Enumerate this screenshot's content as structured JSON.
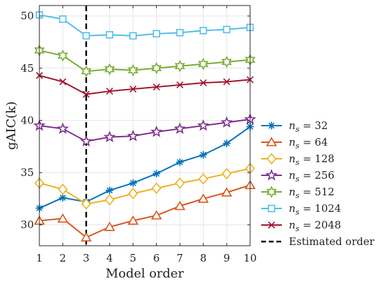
{
  "chart_data": {
    "type": "line",
    "title": "",
    "xlabel": "Model order",
    "ylabel": "gAIC(k)",
    "x": [
      1,
      2,
      3,
      4,
      5,
      6,
      7,
      8,
      9,
      10
    ],
    "xlim": [
      1,
      10
    ],
    "ylim": [
      28,
      51
    ],
    "xticks": [
      1,
      2,
      3,
      4,
      5,
      6,
      7,
      8,
      9,
      10
    ],
    "yticks": [
      30,
      35,
      40,
      45,
      50
    ],
    "grid": true,
    "legend_position": "right",
    "series": [
      {
        "name": "n_s = 32",
        "ns": "32",
        "color": "#0072BD",
        "marker": "asterisk",
        "values": [
          31.6,
          32.6,
          32.2,
          33.3,
          34.0,
          34.9,
          36.0,
          36.7,
          37.8,
          39.4
        ]
      },
      {
        "name": "n_s = 64",
        "ns": "64",
        "color": "#D95319",
        "marker": "triangle",
        "values": [
          30.4,
          30.6,
          28.8,
          29.8,
          30.4,
          30.9,
          31.8,
          32.5,
          33.1,
          33.8
        ]
      },
      {
        "name": "n_s = 128",
        "ns": "128",
        "color": "#EDB120",
        "marker": "diamond",
        "values": [
          34.0,
          33.4,
          32.0,
          32.4,
          33.0,
          33.5,
          34.0,
          34.4,
          34.9,
          35.4
        ]
      },
      {
        "name": "n_s = 256",
        "ns": "256",
        "color": "#7E2F8E",
        "marker": "star",
        "values": [
          39.5,
          39.2,
          38.0,
          38.4,
          38.5,
          38.9,
          39.2,
          39.5,
          39.8,
          40.1
        ]
      },
      {
        "name": "n_s = 512",
        "ns": "512",
        "color": "#77AC30",
        "marker": "hexagram",
        "values": [
          46.7,
          46.2,
          44.7,
          44.9,
          44.8,
          45.0,
          45.2,
          45.4,
          45.6,
          45.8
        ]
      },
      {
        "name": "n_s = 1024",
        "ns": "1024",
        "color": "#4DBEEE",
        "marker": "square",
        "values": [
          50.1,
          49.7,
          48.1,
          48.2,
          48.1,
          48.3,
          48.4,
          48.6,
          48.7,
          48.9
        ]
      },
      {
        "name": "n_s = 2048",
        "ns": "2048",
        "color": "#A2142F",
        "marker": "x",
        "values": [
          44.3,
          43.7,
          42.5,
          42.8,
          43.0,
          43.2,
          43.4,
          43.6,
          43.7,
          43.9
        ]
      }
    ],
    "estimated_order": {
      "x": 3,
      "label": "Estimated order",
      "color": "#000000",
      "style": "dashed"
    }
  }
}
